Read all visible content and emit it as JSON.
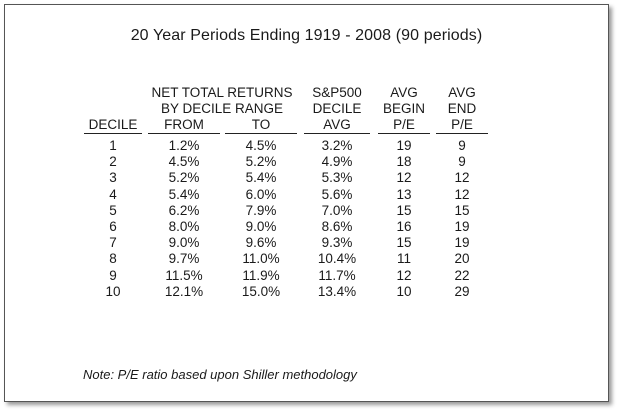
{
  "title": "20 Year Periods Ending 1919 - 2008 (90 periods)",
  "headers": {
    "net_total_returns": "NET TOTAL RETURNS",
    "by_decile_range": "BY DECILE RANGE",
    "sp500": "S&P500",
    "sp_decile": "DECILE",
    "sp_avg": "AVG",
    "avg_begin_1": "AVG",
    "avg_begin_2": "BEGIN",
    "avg_begin_3": "P/E",
    "avg_end_1": "AVG",
    "avg_end_2": "END",
    "avg_end_3": "P/E",
    "decile": "DECILE",
    "from": "FROM",
    "to": "TO"
  },
  "rows": [
    [
      "1",
      "1.2%",
      "4.5%",
      "3.2%",
      "19",
      "9"
    ],
    [
      "2",
      "4.5%",
      "5.2%",
      "4.9%",
      "18",
      "9"
    ],
    [
      "3",
      "5.2%",
      "5.4%",
      "5.3%",
      "12",
      "12"
    ],
    [
      "4",
      "5.4%",
      "6.0%",
      "5.6%",
      "13",
      "12"
    ],
    [
      "5",
      "6.2%",
      "7.9%",
      "7.0%",
      "15",
      "15"
    ],
    [
      "6",
      "8.0%",
      "9.0%",
      "8.6%",
      "16",
      "19"
    ],
    [
      "7",
      "9.0%",
      "9.6%",
      "9.3%",
      "15",
      "19"
    ],
    [
      "8",
      "9.7%",
      "11.0%",
      "10.4%",
      "11",
      "20"
    ],
    [
      "9",
      "11.5%",
      "11.9%",
      "11.7%",
      "12",
      "22"
    ],
    [
      "10",
      "12.1%",
      "15.0%",
      "13.4%",
      "10",
      "29"
    ]
  ],
  "note": "Note: P/E ratio based upon Shiller methodology"
}
